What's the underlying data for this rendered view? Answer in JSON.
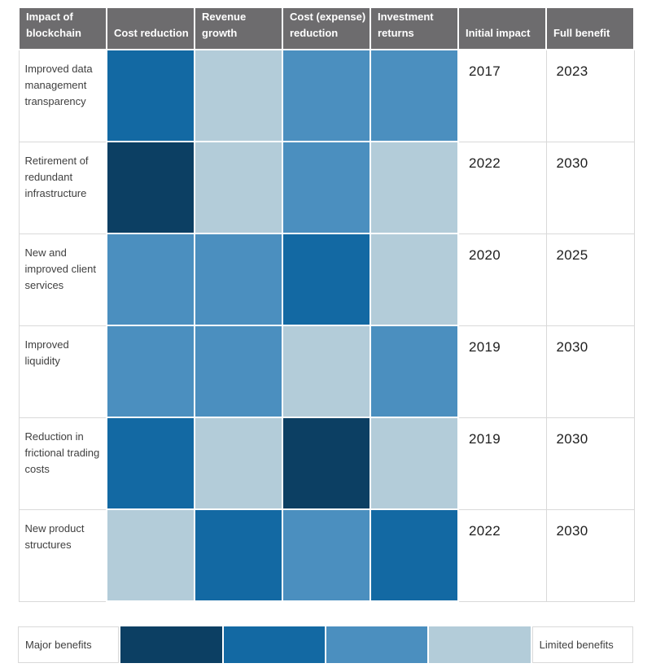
{
  "colors": {
    "header_bg": "#6d6c6e",
    "header_text": "#ffffff",
    "label_text": "#3f3f3f",
    "year_text": "#1e1e1e",
    "cell_border": "#d9d9d9",
    "levels": {
      "1": "#b3ccd9",
      "2": "#4b8fbf",
      "3": "#1369a3",
      "4": "#0c3f63"
    }
  },
  "chart_data": {
    "type": "heatmap",
    "title": "Impact of blockchain",
    "columns": [
      "Cost reduction",
      "Revenue growth",
      "Cost (expense) reduction",
      "Investment returns"
    ],
    "rows": [
      "Improved data management transparency",
      "Retirement of redundant infrastructure",
      "New and improved client services",
      "Improved liquidity",
      "Reduction in frictional trading costs",
      "New product structures"
    ],
    "values": [
      [
        3,
        1,
        2,
        2
      ],
      [
        4,
        1,
        2,
        1
      ],
      [
        2,
        2,
        3,
        1
      ],
      [
        2,
        2,
        1,
        2
      ],
      [
        3,
        1,
        4,
        1
      ],
      [
        1,
        3,
        2,
        3
      ]
    ],
    "scale": {
      "4": "Major benefits",
      "1": "Limited benefits"
    },
    "initial_impact": [
      "2017",
      "2022",
      "2020",
      "2019",
      "2019",
      "2022"
    ],
    "full_benefit": [
      "2023",
      "2030",
      "2025",
      "2030",
      "2030",
      "2030"
    ],
    "legend_position": "bottom"
  },
  "table": {
    "header_lines": [
      [
        "Impact of",
        "blockchain"
      ],
      [
        "Cost reduction"
      ],
      [
        "Revenue",
        "growth"
      ],
      [
        "Cost (expense)",
        "reduction"
      ],
      [
        "Investment",
        "returns"
      ],
      [
        "Initial impact"
      ],
      [
        "Full benefit"
      ]
    ],
    "rows": [
      {
        "label": "Improved data management transparency",
        "levels": [
          3,
          1,
          2,
          2
        ],
        "initial_impact": "2017",
        "full_benefit": "2023"
      },
      {
        "label": "Retirement of redundant infrastructure",
        "levels": [
          4,
          1,
          2,
          1
        ],
        "initial_impact": "2022",
        "full_benefit": "2030"
      },
      {
        "label": "New and improved client services",
        "levels": [
          2,
          2,
          3,
          1
        ],
        "initial_impact": "2020",
        "full_benefit": "2025"
      },
      {
        "label": "Improved liquidity",
        "levels": [
          2,
          2,
          1,
          2
        ],
        "initial_impact": "2019",
        "full_benefit": "2030"
      },
      {
        "label": "Reduction in frictional trading costs",
        "levels": [
          3,
          1,
          4,
          1
        ],
        "initial_impact": "2019",
        "full_benefit": "2030"
      },
      {
        "label": "New product structures",
        "levels": [
          1,
          3,
          2,
          3
        ],
        "initial_impact": "2022",
        "full_benefit": "2030"
      }
    ]
  },
  "legend": {
    "major_label": "Major benefits",
    "limited_label": "Limited benefits",
    "swatch_levels": [
      4,
      3,
      2,
      1
    ]
  }
}
